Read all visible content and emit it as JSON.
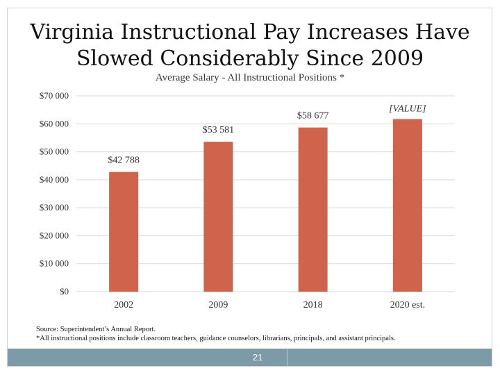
{
  "slide": {
    "title_line1": "Virginia Instructional Pay Increases Have",
    "title_line2": "Slowed Considerably Since 2009",
    "source_note": "Source: Superintendent’s Annual Report.",
    "footnote": "*All instructional positions include classroom teachers, guidance counselors, librarians, principals, and assistant principals.",
    "page_number": "21"
  },
  "chart_data": {
    "type": "bar",
    "title": "Average Salary - All Instructional Positions *",
    "categories": [
      "2002",
      "2009",
      "2018",
      "2020 est."
    ],
    "values": [
      42788,
      53581,
      58677,
      61700
    ],
    "data_labels": [
      "$42 788",
      "$53 581",
      "$58 677",
      "[VALUE]"
    ],
    "ylim": [
      0,
      70000
    ],
    "y_ticks": [
      0,
      10000,
      20000,
      30000,
      40000,
      50000,
      60000,
      70000
    ],
    "y_tick_labels": [
      "$0",
      "$10 000",
      "$20 000",
      "$30 000",
      "$40 000",
      "$50 000",
      "$60 000",
      "$70 000"
    ],
    "grid": true,
    "bar_color": "#d0634b",
    "grid_color": "#d9d9d9"
  }
}
